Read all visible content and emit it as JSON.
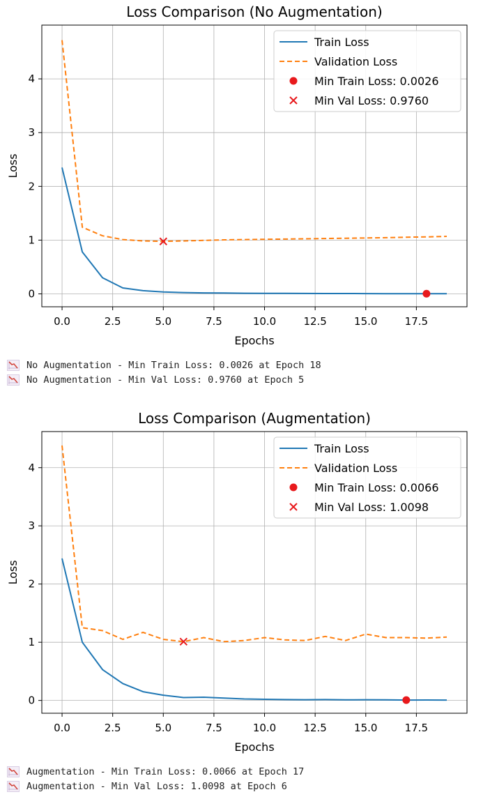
{
  "chart_data": [
    {
      "type": "line",
      "title": "Loss Comparison (No Augmentation)",
      "xlabel": "Epochs",
      "ylabel": "Loss",
      "xlim": [
        -1,
        20
      ],
      "ylim": [
        -0.24,
        5.0
      ],
      "xticks": [
        0,
        2.5,
        5,
        7.5,
        10,
        12.5,
        15,
        17.5
      ],
      "xtick_labels": [
        "0.0",
        "2.5",
        "5.0",
        "7.5",
        "10.0",
        "12.5",
        "15.0",
        "17.5"
      ],
      "yticks": [
        0,
        1,
        2,
        3,
        4
      ],
      "ytick_labels": [
        "0",
        "1",
        "2",
        "3",
        "4"
      ],
      "grid": true,
      "legend_position": "top-right",
      "x": [
        0,
        1,
        2,
        3,
        4,
        5,
        6,
        7,
        8,
        9,
        10,
        11,
        12,
        13,
        14,
        15,
        16,
        17,
        18,
        19
      ],
      "series": [
        {
          "name": "Train Loss",
          "style": "solid",
          "color": "#1f77b4",
          "values": [
            2.35,
            0.78,
            0.3,
            0.11,
            0.06,
            0.035,
            0.025,
            0.018,
            0.015,
            0.012,
            0.01,
            0.009,
            0.008,
            0.007,
            0.006,
            0.005,
            0.004,
            0.004,
            0.0026,
            0.004
          ]
        },
        {
          "name": "Validation Loss",
          "style": "dashed",
          "color": "#ff7f0e",
          "values": [
            4.72,
            1.24,
            1.08,
            1.01,
            0.985,
            0.976,
            0.985,
            0.995,
            1.005,
            1.01,
            1.015,
            1.02,
            1.025,
            1.03,
            1.035,
            1.04,
            1.045,
            1.055,
            1.06,
            1.07
          ]
        }
      ],
      "markers": [
        {
          "name": "Min Train Loss: 0.0026",
          "shape": "circle",
          "color": "#e8191c",
          "x": 18,
          "y": 0.0026
        },
        {
          "name": "Min Val Loss: 0.9760",
          "shape": "x",
          "color": "#e8191c",
          "x": 5,
          "y": 0.976
        }
      ]
    },
    {
      "type": "line",
      "title": "Loss Comparison (Augmentation)",
      "xlabel": "Epochs",
      "ylabel": "Loss",
      "xlim": [
        -1,
        20
      ],
      "ylim": [
        -0.22,
        4.62
      ],
      "xticks": [
        0,
        2.5,
        5,
        7.5,
        10,
        12.5,
        15,
        17.5
      ],
      "xtick_labels": [
        "0.0",
        "2.5",
        "5.0",
        "7.5",
        "10.0",
        "12.5",
        "15.0",
        "17.5"
      ],
      "yticks": [
        0,
        1,
        2,
        3,
        4
      ],
      "ytick_labels": [
        "0",
        "1",
        "2",
        "3",
        "4"
      ],
      "grid": true,
      "legend_position": "top-right",
      "x": [
        0,
        1,
        2,
        3,
        4,
        5,
        6,
        7,
        8,
        9,
        10,
        11,
        12,
        13,
        14,
        15,
        16,
        17,
        18,
        19
      ],
      "series": [
        {
          "name": "Train Loss",
          "style": "solid",
          "color": "#1f77b4",
          "values": [
            2.44,
            1.0,
            0.53,
            0.29,
            0.15,
            0.09,
            0.05,
            0.055,
            0.04,
            0.025,
            0.02,
            0.015,
            0.012,
            0.015,
            0.01,
            0.012,
            0.01,
            0.0066,
            0.008,
            0.007
          ]
        },
        {
          "name": "Validation Loss",
          "style": "dashed",
          "color": "#ff7f0e",
          "values": [
            4.38,
            1.25,
            1.2,
            1.05,
            1.17,
            1.05,
            1.01,
            1.08,
            1.01,
            1.03,
            1.08,
            1.04,
            1.03,
            1.1,
            1.03,
            1.14,
            1.08,
            1.08,
            1.07,
            1.09
          ]
        }
      ],
      "markers": [
        {
          "name": "Min Train Loss: 0.0066",
          "shape": "circle",
          "color": "#e8191c",
          "x": 17,
          "y": 0.0066
        },
        {
          "name": "Min Val Loss: 1.0098",
          "shape": "x",
          "color": "#e8191c",
          "x": 6,
          "y": 1.0098
        }
      ]
    }
  ],
  "logs": [
    {
      "text": "No Augmentation - Min Train Loss: 0.0026 at Epoch 18",
      "icon": "chart-decreasing-icon"
    },
    {
      "text": "No Augmentation - Min Val Loss: 0.9760 at Epoch 5",
      "icon": "chart-decreasing-icon"
    },
    {
      "text": "Augmentation - Min Train Loss: 0.0066 at Epoch 17",
      "icon": "chart-decreasing-icon"
    },
    {
      "text": "Augmentation - Min Val Loss: 1.0098 at Epoch 6",
      "icon": "chart-decreasing-icon"
    }
  ]
}
